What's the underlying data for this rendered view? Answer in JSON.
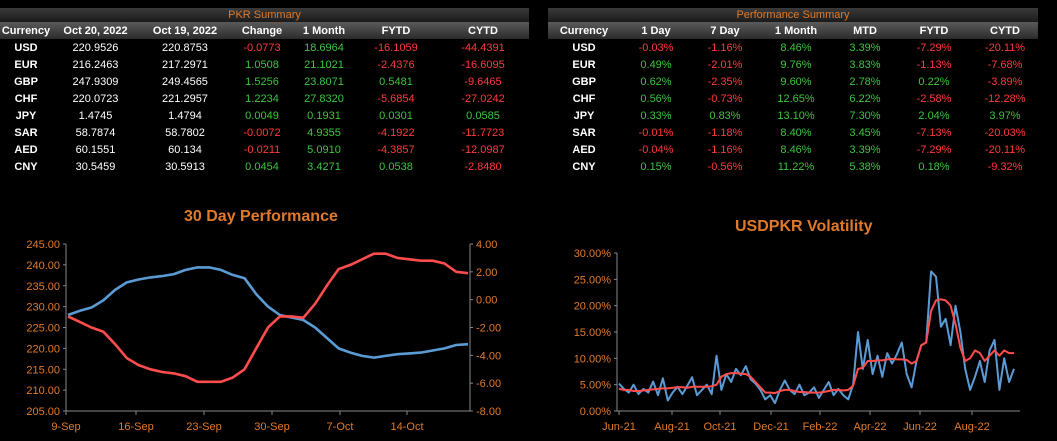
{
  "pkr_summary": {
    "title": "PKR Summary",
    "headers": [
      "Currency",
      "Oct 20, 2022",
      "Oct 19, 2022",
      "Change",
      "1 Month",
      "FYTD",
      "CYTD"
    ],
    "rows": [
      {
        "currency": "USD",
        "d1": "220.9526",
        "d2": "220.8753",
        "change": "-0.0773",
        "m1": "18.6964",
        "fytd": "-16.1059",
        "cytd": "-44.4391"
      },
      {
        "currency": "EUR",
        "d1": "216.2463",
        "d2": "217.2971",
        "change": "1.0508",
        "m1": "21.1021",
        "fytd": "-2.4376",
        "cytd": "-16.6095"
      },
      {
        "currency": "GBP",
        "d1": "247.9309",
        "d2": "249.4565",
        "change": "1.5256",
        "m1": "23.8071",
        "fytd": "0.5481",
        "cytd": "-9.6465"
      },
      {
        "currency": "CHF",
        "d1": "220.0723",
        "d2": "221.2957",
        "change": "1.2234",
        "m1": "27.8320",
        "fytd": "-5.6854",
        "cytd": "-27.0242"
      },
      {
        "currency": "JPY",
        "d1": "1.4745",
        "d2": "1.4794",
        "change": "0.0049",
        "m1": "0.1931",
        "fytd": "0.0301",
        "cytd": "0.0585"
      },
      {
        "currency": "SAR",
        "d1": "58.7874",
        "d2": "58.7802",
        "change": "-0.0072",
        "m1": "4.9355",
        "fytd": "-4.1922",
        "cytd": "-11.7723"
      },
      {
        "currency": "AED",
        "d1": "60.1551",
        "d2": "60.134",
        "change": "-0.0211",
        "m1": "5.0910",
        "fytd": "-4.3857",
        "cytd": "-12.0987"
      },
      {
        "currency": "CNY",
        "d1": "30.5459",
        "d2": "30.5913",
        "change": "0.0454",
        "m1": "3.4271",
        "fytd": "0.0538",
        "cytd": "-2.8480"
      }
    ]
  },
  "performance_summary": {
    "title": "Performance Summary",
    "headers": [
      "Currency",
      "1 Day",
      "7 Day",
      "1 Month",
      "MTD",
      "FYTD",
      "CYTD"
    ],
    "rows": [
      {
        "currency": "USD",
        "d1": "-0.03%",
        "d7": "-1.16%",
        "m1": "8.46%",
        "mtd": "3.39%",
        "fytd": "-7.29%",
        "cytd": "-20.11%"
      },
      {
        "currency": "EUR",
        "d1": "0.49%",
        "d7": "-2.01%",
        "m1": "9.76%",
        "mtd": "3.83%",
        "fytd": "-1.13%",
        "cytd": "-7.68%"
      },
      {
        "currency": "GBP",
        "d1": "0.62%",
        "d7": "-2.35%",
        "m1": "9.60%",
        "mtd": "2.78%",
        "fytd": "0.22%",
        "cytd": "-3.89%"
      },
      {
        "currency": "CHF",
        "d1": "0.56%",
        "d7": "-0.73%",
        "m1": "12.65%",
        "mtd": "6.22%",
        "fytd": "-2.58%",
        "cytd": "-12.28%"
      },
      {
        "currency": "JPY",
        "d1": "0.33%",
        "d7": "0.83%",
        "m1": "13.10%",
        "mtd": "7.30%",
        "fytd": "2.04%",
        "cytd": "3.97%"
      },
      {
        "currency": "SAR",
        "d1": "-0.01%",
        "d7": "-1.18%",
        "m1": "8.40%",
        "mtd": "3.45%",
        "fytd": "-7.13%",
        "cytd": "-20.03%"
      },
      {
        "currency": "AED",
        "d1": "-0.04%",
        "d7": "-1.16%",
        "m1": "8.46%",
        "mtd": "3.39%",
        "fytd": "-7.29%",
        "cytd": "-20.11%"
      },
      {
        "currency": "CNY",
        "d1": "0.15%",
        "d7": "-0.56%",
        "m1": "11.22%",
        "mtd": "5.38%",
        "fytd": "0.18%",
        "cytd": "-9.32%"
      }
    ]
  },
  "colors": {
    "positive": "#3ec43e",
    "negative": "#ff3a3a",
    "accent": "#e07a2a",
    "blue": "#5b9bd5",
    "red": "#ff4d4d"
  },
  "chart_data": [
    {
      "type": "line",
      "title": "30 Day Performance",
      "x_ticks": [
        "9-Sep",
        "16-Sep",
        "23-Sep",
        "30-Sep",
        "7-Oct",
        "14-Oct"
      ],
      "y_ticks_left": [
        "245.00",
        "240.00",
        "235.00",
        "230.00",
        "225.00",
        "220.00",
        "215.00",
        "210.00",
        "205.00"
      ],
      "y_ticks_right": [
        "4.00",
        "2.00",
        "0.00",
        "-2.00",
        "-4.00",
        "-6.00",
        "-8.00"
      ],
      "ylim_left": [
        205,
        245
      ],
      "ylim_right": [
        -8,
        4
      ],
      "series": [
        {
          "axis": "left",
          "color": "#5b9bd5",
          "values": [
            228.0,
            229.0,
            229.8,
            231.5,
            234.0,
            235.8,
            236.5,
            237.0,
            237.3,
            237.8,
            238.8,
            239.4,
            239.4,
            238.8,
            237.6,
            236.8,
            233.0,
            230.0,
            228.0,
            227.4,
            226.8,
            225.0,
            222.5,
            220.0,
            219.0,
            218.2,
            217.8,
            218.2,
            218.6,
            218.8,
            219.0,
            219.5,
            220.0,
            220.8,
            221.0
          ]
        },
        {
          "axis": "right",
          "color": "#ff4d4d",
          "values": [
            -1.2,
            -1.6,
            -2.0,
            -2.3,
            -3.2,
            -4.2,
            -4.7,
            -5.0,
            -5.2,
            -5.3,
            -5.5,
            -5.9,
            -5.9,
            -5.9,
            -5.6,
            -5.0,
            -3.5,
            -2.0,
            -1.2,
            -1.2,
            -1.3,
            -0.3,
            1.0,
            2.2,
            2.5,
            2.9,
            3.3,
            3.3,
            3.0,
            2.9,
            2.8,
            2.8,
            2.6,
            2.0,
            1.9
          ]
        }
      ]
    },
    {
      "type": "line",
      "title": "USDPKR Volatility",
      "x_ticks": [
        "Jun-21",
        "Aug-21",
        "Oct-21",
        "Dec-21",
        "Feb-22",
        "Apr-22",
        "Jun-22",
        "Aug-22"
      ],
      "y_ticks": [
        "30.00%",
        "25.00%",
        "20.00%",
        "15.00%",
        "10.00%",
        "5.00%",
        "0.00%"
      ],
      "ylim": [
        0,
        30
      ],
      "series": [
        {
          "color": "#5b9bd5",
          "values": [
            5.2,
            4.2,
            3.5,
            5.0,
            3.2,
            4.2,
            3.5,
            5.6,
            3.0,
            6.2,
            2.0,
            3.5,
            4.6,
            3.2,
            4.8,
            6.4,
            3.0,
            4.0,
            5.0,
            3.2,
            10.5,
            4.0,
            7.0,
            5.5,
            8.0,
            6.8,
            8.5,
            6.0,
            5.2,
            4.0,
            2.2,
            3.0,
            1.5,
            4.0,
            5.8,
            4.0,
            3.2,
            5.0,
            3.0,
            3.5,
            4.5,
            2.5,
            4.0,
            5.5,
            3.0,
            4.2,
            3.0,
            2.2,
            5.0,
            15.0,
            8.0,
            13.5,
            7.0,
            10.5,
            6.5,
            11.0,
            9.0,
            10.8,
            13.0,
            7.0,
            4.5,
            9.5,
            12.5,
            13.0,
            26.5,
            25.5,
            16.0,
            17.5,
            12.5,
            20.0,
            15.0,
            8.0,
            4.0,
            6.5,
            9.5,
            5.5,
            11.5,
            13.5,
            4.0,
            10.0,
            5.5,
            8.0
          ]
        },
        {
          "color": "#ff4d4d",
          "values": [
            4.2,
            4.0,
            4.0,
            3.8,
            3.8,
            3.9,
            4.0,
            4.1,
            4.2,
            4.3,
            4.3,
            4.4,
            4.5,
            4.5,
            4.4,
            4.6,
            4.6,
            4.6,
            4.6,
            4.7,
            5.0,
            6.5,
            7.0,
            7.2,
            7.2,
            7.1,
            7.0,
            6.5,
            5.5,
            4.5,
            3.5,
            3.5,
            3.4,
            3.8,
            4.0,
            4.0,
            3.8,
            3.6,
            3.6,
            3.5,
            3.5,
            3.5,
            3.6,
            3.8,
            4.0,
            4.0,
            3.9,
            4.0,
            4.8,
            8.0,
            8.2,
            9.5,
            9.5,
            9.6,
            9.6,
            9.8,
            9.9,
            9.8,
            9.8,
            9.7,
            9.0,
            9.5,
            12.5,
            13.0,
            19.0,
            21.0,
            21.2,
            21.0,
            20.0,
            16.5,
            12.0,
            9.5,
            10.0,
            11.5,
            11.0,
            9.5,
            10.5,
            11.5,
            10.5,
            11.5,
            11.0,
            11.0
          ]
        }
      ]
    }
  ]
}
